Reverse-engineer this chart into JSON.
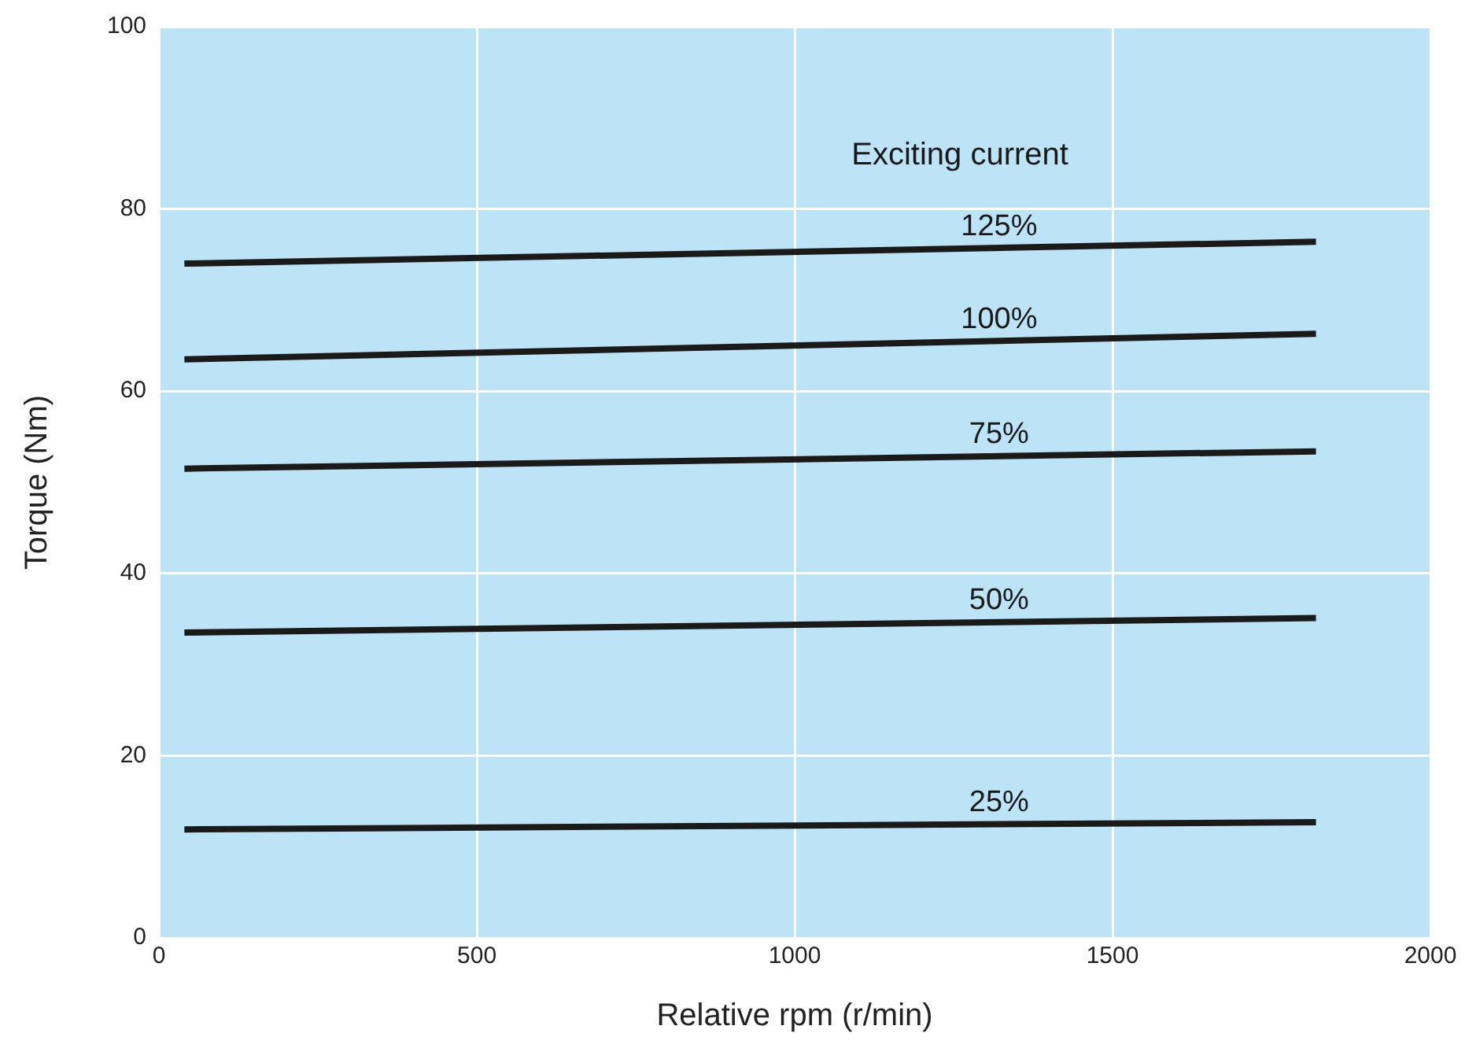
{
  "chart_data": {
    "type": "line",
    "xlabel": "Relative rpm (r/min)",
    "ylabel": "Torque (Nm)",
    "annotations": [
      "Exciting current"
    ],
    "xlim": [
      0,
      2000
    ],
    "xticks": [
      0,
      500,
      1000,
      1500,
      2000
    ],
    "ylim": [
      0,
      100
    ],
    "yticks": [
      0,
      20,
      40,
      60,
      80,
      100
    ],
    "grid": true,
    "legend": false,
    "marker": "none",
    "line_style": "solid",
    "x": [
      40,
      1820
    ],
    "series": [
      {
        "name": "125%",
        "color": "#1a1a1a",
        "values": [
          74.0,
          76.4
        ]
      },
      {
        "name": "100%",
        "color": "#1a1a1a",
        "values": [
          63.5,
          66.3
        ]
      },
      {
        "name": "75%",
        "color": "#1a1a1a",
        "values": [
          51.5,
          53.4
        ]
      },
      {
        "name": "50%",
        "color": "#1a1a1a",
        "values": [
          33.5,
          35.1
        ]
      },
      {
        "name": "25%",
        "color": "#1a1a1a",
        "values": [
          11.9,
          12.7
        ]
      }
    ]
  }
}
